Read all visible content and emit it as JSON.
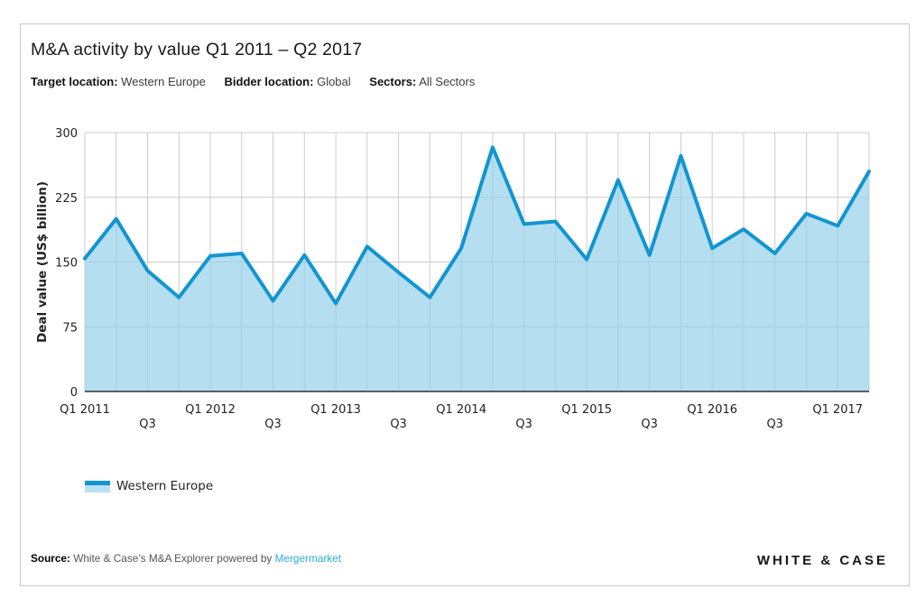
{
  "title": "M&A activity by value Q1 2011 – Q2 2017",
  "filters": {
    "target_label": "Target location:",
    "target_value": "Western Europe",
    "bidder_label": "Bidder location:",
    "bidder_value": "Global",
    "sectors_label": "Sectors:",
    "sectors_value": "All Sectors"
  },
  "legend": {
    "label": "Western Europe"
  },
  "footer": {
    "source_label": "Source:",
    "source_text": "White & Case’s M&A Explorer powered by",
    "source_link": "Mergermarket",
    "logo_text": "WHITE & CASE"
  },
  "colors": {
    "line": "#1295d0",
    "fill": "rgba(150,209,234,0.7)",
    "legend_fill": "#b9e1f1",
    "grid": "#cccccc",
    "axis": "#333333",
    "link": "#29abe2",
    "text": "#222222"
  },
  "chart_data": {
    "type": "area",
    "title": "M&A activity by value Q1 2011 – Q2 2017",
    "xlabel": "",
    "ylabel": "Deal value (US$ billion)",
    "ylim": [
      0,
      300
    ],
    "yticks": [
      0,
      75,
      150,
      225,
      300
    ],
    "grid": true,
    "legend_position": "bottom-left",
    "categories": [
      "Q1 2011",
      "Q2 2011",
      "Q3 2011",
      "Q4 2011",
      "Q1 2012",
      "Q2 2012",
      "Q3 2012",
      "Q4 2012",
      "Q1 2013",
      "Q2 2013",
      "Q3 2013",
      "Q4 2013",
      "Q1 2014",
      "Q2 2014",
      "Q3 2014",
      "Q4 2014",
      "Q1 2015",
      "Q2 2015",
      "Q3 2015",
      "Q4 2015",
      "Q1 2016",
      "Q2 2016",
      "Q3 2016",
      "Q4 2016",
      "Q1 2017",
      "Q2 2017"
    ],
    "series": [
      {
        "name": "Western Europe",
        "values": [
          154,
          200,
          140,
          109,
          157,
          160,
          105,
          158,
          102,
          168,
          138,
          109,
          166,
          283,
          194,
          197,
          153,
          245,
          158,
          273,
          166,
          188,
          160,
          206,
          192,
          255
        ]
      }
    ],
    "xticks": [
      {
        "index": 0,
        "label": "Q1 2011",
        "row": 0
      },
      {
        "index": 2,
        "label": "Q3",
        "row": 1
      },
      {
        "index": 4,
        "label": "Q1 2012",
        "row": 0
      },
      {
        "index": 6,
        "label": "Q3",
        "row": 1
      },
      {
        "index": 8,
        "label": "Q1 2013",
        "row": 0
      },
      {
        "index": 10,
        "label": "Q3",
        "row": 1
      },
      {
        "index": 12,
        "label": "Q1 2014",
        "row": 0
      },
      {
        "index": 14,
        "label": "Q3",
        "row": 1
      },
      {
        "index": 16,
        "label": "Q1 2015",
        "row": 0
      },
      {
        "index": 18,
        "label": "Q3",
        "row": 1
      },
      {
        "index": 20,
        "label": "Q1 2016",
        "row": 0
      },
      {
        "index": 22,
        "label": "Q3",
        "row": 1
      },
      {
        "index": 24,
        "label": "Q1 2017",
        "row": 0
      }
    ]
  }
}
